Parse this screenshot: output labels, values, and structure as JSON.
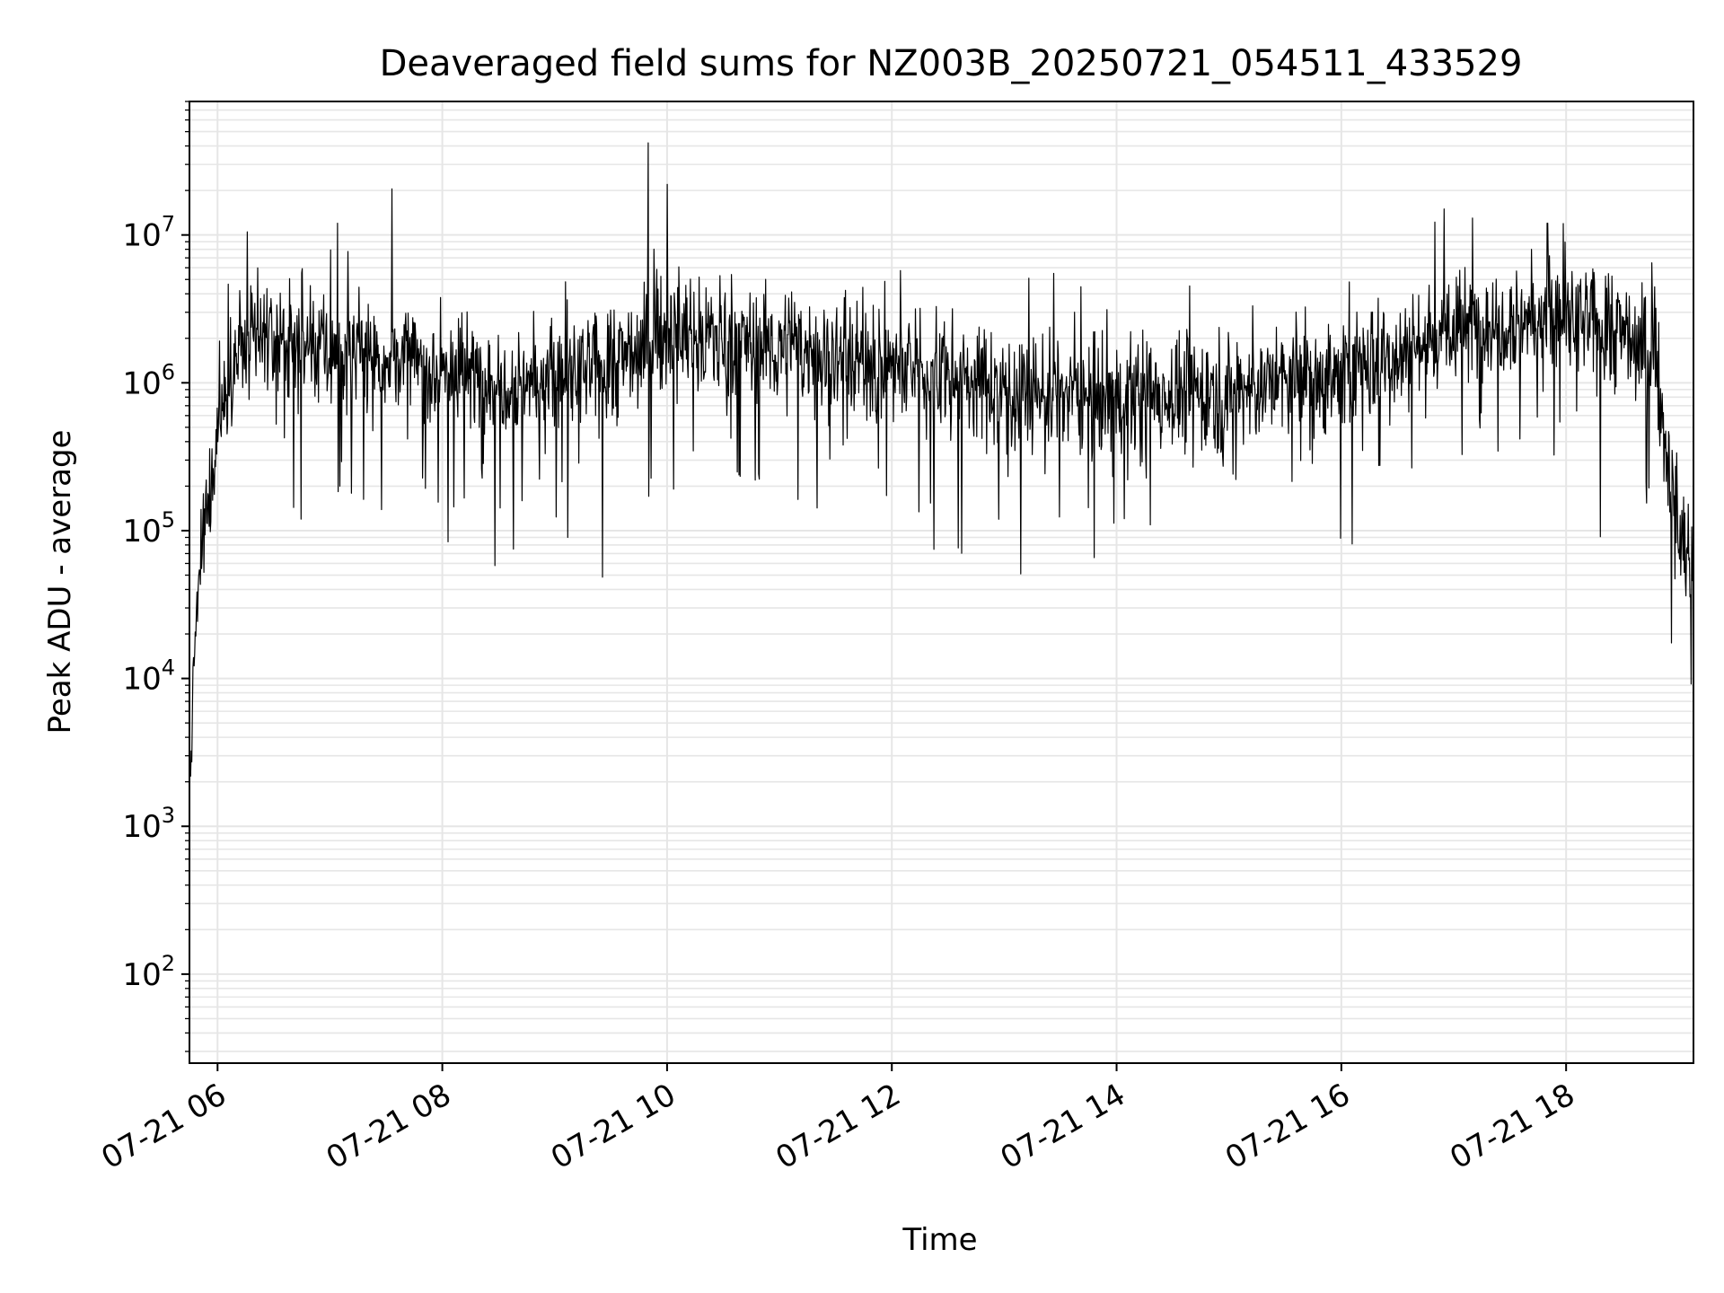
{
  "chart_data": {
    "type": "line",
    "title": "Deaveraged field sums for NZ003B_20250721_054511_433529",
    "xlabel": "Time",
    "ylabel": "Peak ADU - average",
    "x_scale": "time",
    "y_scale": "log",
    "xlim": [
      "2025-07-21 05:45",
      "2025-07-21 19:08"
    ],
    "ylim": [
      25,
      80000000
    ],
    "x_ticks": [
      "2025-07-21 06:00",
      "2025-07-21 08:00",
      "2025-07-21 10:00",
      "2025-07-21 12:00",
      "2025-07-21 14:00",
      "2025-07-21 16:00",
      "2025-07-21 18:00"
    ],
    "x_tick_labels": [
      "07-21 06",
      "07-21 08",
      "07-21 10",
      "07-21 12",
      "07-21 14",
      "07-21 16",
      "07-21 18"
    ],
    "y_ticks": [
      100,
      1000,
      10000,
      100000,
      1000000,
      10000000
    ],
    "y_tick_labels": [
      {
        "base": "10",
        "exp": "2"
      },
      {
        "base": "10",
        "exp": "3"
      },
      {
        "base": "10",
        "exp": "4"
      },
      {
        "base": "10",
        "exp": "5"
      },
      {
        "base": "10",
        "exp": "6"
      },
      {
        "base": "10",
        "exp": "7"
      }
    ],
    "grid": "major and minor",
    "line_color": "#000000",
    "grid_color": "#e6e6e6",
    "series": [
      {
        "x": [
          "2025-07-21 05:45",
          "2025-07-21 05:48",
          "2025-07-21 05:51",
          "2025-07-21 05:54",
          "2025-07-21 05:57",
          "2025-07-21 06:00",
          "2025-07-21 06:06",
          "2025-07-21 06:15",
          "2025-07-21 06:30",
          "2025-07-21 07:00",
          "2025-07-21 07:30",
          "2025-07-21 08:00",
          "2025-07-21 08:30",
          "2025-07-21 09:00",
          "2025-07-21 09:30",
          "2025-07-21 10:00",
          "2025-07-21 10:30",
          "2025-07-21 11:00",
          "2025-07-21 11:30",
          "2025-07-21 12:00",
          "2025-07-21 12:30",
          "2025-07-21 13:00",
          "2025-07-21 13:30",
          "2025-07-21 14:00",
          "2025-07-21 14:30",
          "2025-07-21 15:00",
          "2025-07-21 15:30",
          "2025-07-21 16:00",
          "2025-07-21 16:30",
          "2025-07-21 17:00",
          "2025-07-21 17:30",
          "2025-07-21 18:00",
          "2025-07-21 18:30",
          "2025-07-21 18:48",
          "2025-07-21 18:54",
          "2025-07-21 19:00",
          "2025-07-21 19:08"
        ],
        "y": [
          1500,
          20000,
          60000,
          120000,
          250000,
          500000,
          1200000,
          1800000,
          1900000,
          1600000,
          1500000,
          1200000,
          1100000,
          1000000,
          1300000,
          2200000,
          2000000,
          1700000,
          1500000,
          1300000,
          1100000,
          900000,
          850000,
          800000,
          850000,
          900000,
          1000000,
          1100000,
          1600000,
          2200000,
          2800000,
          2600000,
          2200000,
          1500000,
          300000,
          100000,
          50000
        ]
      }
    ],
    "spikes": [
      {
        "x": "2025-07-21 06:16",
        "y": 10500000
      },
      {
        "x": "2025-07-21 07:04",
        "y": 12000000
      },
      {
        "x": "2025-07-21 07:33",
        "y": 20500000
      },
      {
        "x": "2025-07-21 08:28",
        "y": 58000
      },
      {
        "x": "2025-07-21 08:38",
        "y": 75000
      },
      {
        "x": "2025-07-21 09:07",
        "y": 90000
      },
      {
        "x": "2025-07-21 09:50",
        "y": 42000000
      },
      {
        "x": "2025-07-21 10:00",
        "y": 22000000
      },
      {
        "x": "2025-07-21 16:55",
        "y": 15000000
      },
      {
        "x": "2025-07-21 17:10",
        "y": 13000000
      },
      {
        "x": "2025-07-21 17:50",
        "y": 12000000
      }
    ]
  }
}
